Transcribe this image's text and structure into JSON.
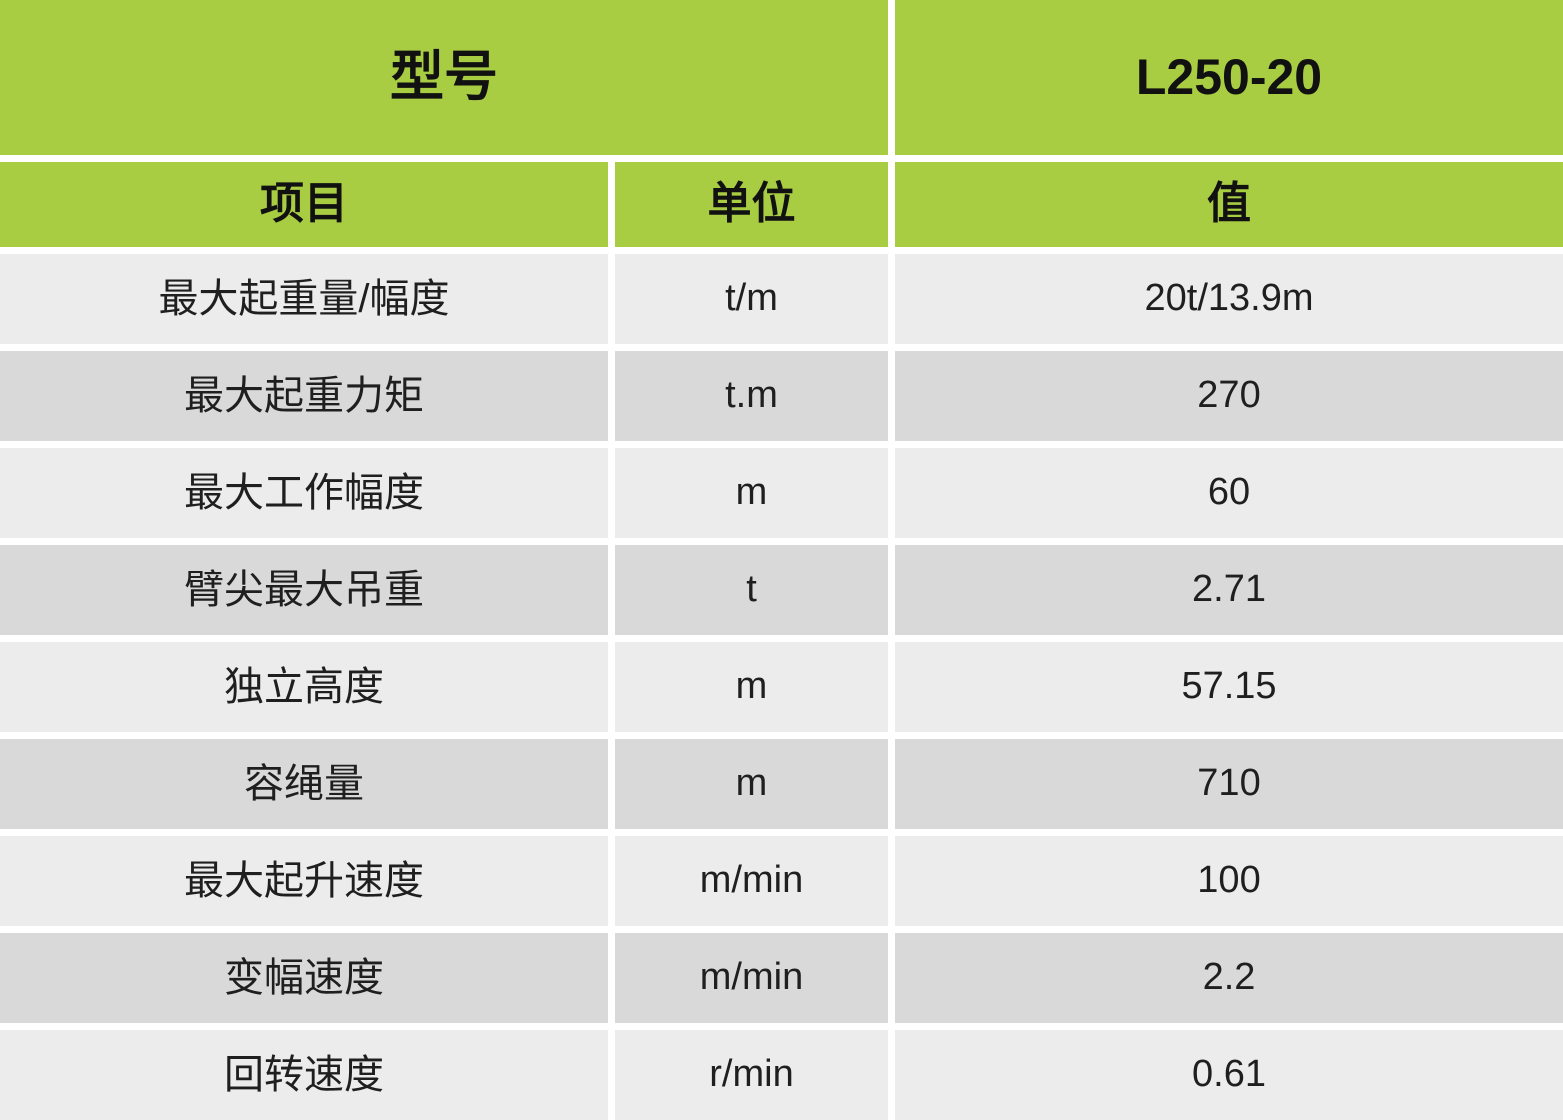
{
  "table": {
    "model_header": {
      "label": "型号",
      "model": "L250-20"
    },
    "columns": {
      "item": "项目",
      "unit": "单位",
      "value": "值"
    },
    "rows": [
      {
        "item": "最大起重量/幅度",
        "unit": "t/m",
        "value": "20t/13.9m"
      },
      {
        "item": "最大起重力矩",
        "unit": "t.m",
        "value": "270"
      },
      {
        "item": "最大工作幅度",
        "unit": "m",
        "value": "60"
      },
      {
        "item": "臂尖最大吊重",
        "unit": "t",
        "value": "2.71"
      },
      {
        "item": "独立高度",
        "unit": "m",
        "value": "57.15"
      },
      {
        "item": "容绳量",
        "unit": "m",
        "value": "710"
      },
      {
        "item": "最大起升速度",
        "unit": "m/min",
        "value": "100"
      },
      {
        "item": "变幅速度",
        "unit": "m/min",
        "value": "2.2"
      },
      {
        "item": "回转速度",
        "unit": "r/min",
        "value": "0.61"
      }
    ],
    "colors": {
      "header_green": "#a8cd42",
      "row_light": "#ececec",
      "row_dark": "#d9d9d9",
      "gap_white": "#ffffff",
      "header_text": "#111111",
      "body_text": "#1f1f1f"
    }
  },
  "chart_data": {
    "type": "table",
    "title": "型号 L250-20",
    "columns": [
      "项目",
      "单位",
      "值"
    ],
    "rows": [
      [
        "最大起重量/幅度",
        "t/m",
        "20t/13.9m"
      ],
      [
        "最大起重力矩",
        "t.m",
        "270"
      ],
      [
        "最大工作幅度",
        "m",
        "60"
      ],
      [
        "臂尖最大吊重",
        "t",
        "2.71"
      ],
      [
        "独立高度",
        "m",
        "57.15"
      ],
      [
        "容绳量",
        "m",
        "710"
      ],
      [
        "最大起升速度",
        "m/min",
        "100"
      ],
      [
        "变幅速度",
        "m/min",
        "2.2"
      ],
      [
        "回转速度",
        "r/min",
        "0.61"
      ]
    ]
  }
}
